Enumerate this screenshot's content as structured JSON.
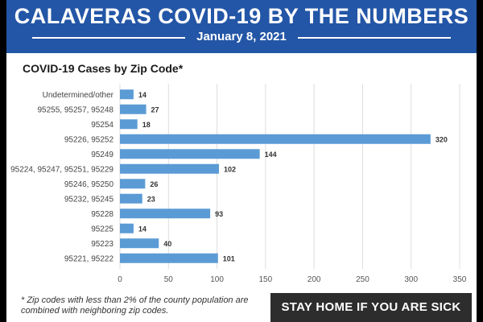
{
  "header": {
    "title": "CALAVERAS COVID-19 BY THE NUMBERS",
    "date": "January 8, 2021"
  },
  "colors": {
    "header_bg": "#2356a6",
    "bar": "#5b9bd5",
    "banner_bg": "#2d2d2d"
  },
  "chart_data": {
    "type": "bar",
    "orientation": "horizontal",
    "title": "COVID-19 Cases by Zip Code*",
    "categories": [
      "Undetermined/other",
      "95255, 95257, 95248",
      "95254",
      "95226, 95252",
      "95249",
      "95224, 95247, 95251, 95229",
      "95246, 95250",
      "95232, 95245",
      "95228",
      "95225",
      "95223",
      "95221, 95222"
    ],
    "values": [
      14,
      27,
      18,
      320,
      144,
      102,
      26,
      23,
      93,
      14,
      40,
      101
    ],
    "xlim": [
      0,
      350
    ],
    "xticks": [
      0,
      50,
      100,
      150,
      200,
      250,
      300,
      350
    ],
    "grid": "vertical",
    "data_labels": true
  },
  "footnote": "* Zip codes with less than 2% of the county population are combined with neighboring zip codes.",
  "banner": "STAY HOME IF YOU ARE SICK"
}
